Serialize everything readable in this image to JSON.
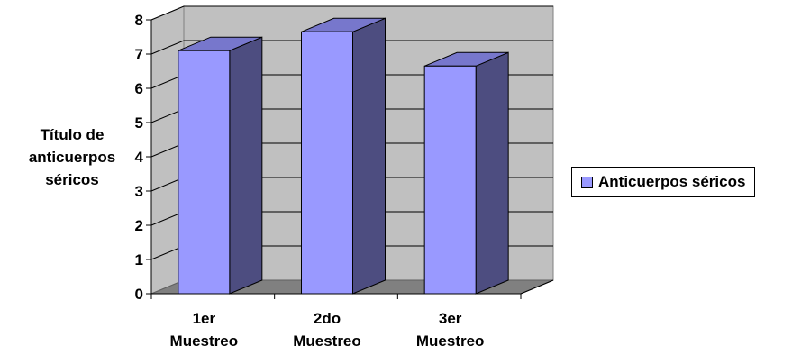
{
  "chart_data": {
    "type": "bar",
    "categories": [
      [
        "1er",
        "Muestreo"
      ],
      [
        "2do",
        "Muestreo"
      ],
      [
        "3er",
        "Muestreo"
      ]
    ],
    "series": [
      {
        "name": "Anticuerpos séricos",
        "values": [
          7.1,
          7.65,
          6.65
        ]
      }
    ],
    "ylabel_lines": [
      "Título de",
      "anticuerpos",
      "séricos"
    ],
    "ylim": [
      0,
      8
    ],
    "yticks": [
      "0",
      "1",
      "2",
      "3",
      "4",
      "5",
      "6",
      "7",
      "8"
    ],
    "grid": true,
    "legend": "right",
    "colors": {
      "bar_front": "#9999FF",
      "bar_side": "#4D4D80",
      "bar_top": "#7777CC",
      "wall": "#C0C0C0",
      "floor": "#808080"
    }
  }
}
